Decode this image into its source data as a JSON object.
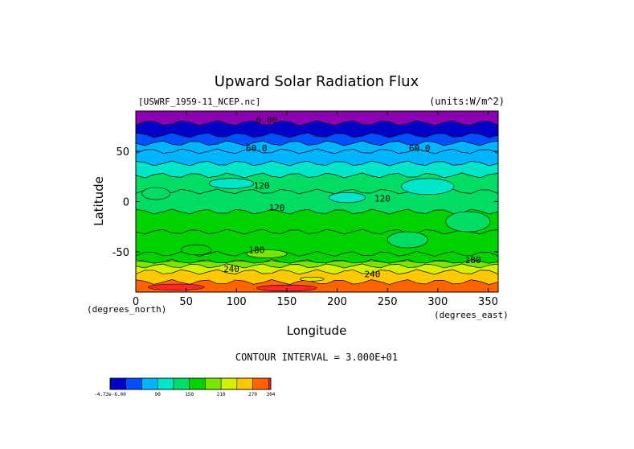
{
  "chart_data": {
    "type": "heatmap",
    "title": "Upward Solar Radiation Flux",
    "subtitle_left": "[USWRF_1959-11_NCEP.nc]",
    "subtitle_right": "(units:W/m^2)",
    "xlabel": "Longitude",
    "ylabel": "Latitude",
    "x_unit": "(degrees_east)",
    "y_unit": "(degrees_north)",
    "xlim": [
      0,
      360
    ],
    "ylim": [
      -90,
      90
    ],
    "x_ticks": [
      0,
      50,
      100,
      150,
      200,
      250,
      300,
      350
    ],
    "y_ticks": [
      50,
      0,
      -50
    ],
    "contour_interval_text": "CONTOUR INTERVAL = 3.000E+01",
    "contour_interval": 30,
    "bands": [
      {
        "lat_min": 78,
        "lat_max": 90,
        "value": 0
      },
      {
        "lat_min": 66,
        "lat_max": 78,
        "value": 15
      },
      {
        "lat_min": 58,
        "lat_max": 66,
        "value": 35
      },
      {
        "lat_min": 50,
        "lat_max": 58,
        "value": 65
      },
      {
        "lat_min": 38,
        "lat_max": 50,
        "value": 85
      },
      {
        "lat_min": 26,
        "lat_max": 38,
        "value": 105
      },
      {
        "lat_min": 10,
        "lat_max": 26,
        "value": 125
      },
      {
        "lat_min": -10,
        "lat_max": 10,
        "value": 135
      },
      {
        "lat_min": -30,
        "lat_max": -10,
        "value": 150
      },
      {
        "lat_min": -52,
        "lat_max": -30,
        "value": 160
      },
      {
        "lat_min": -60,
        "lat_max": -52,
        "value": 175
      },
      {
        "lat_min": -64,
        "lat_max": -60,
        "value": 205
      },
      {
        "lat_min": -70,
        "lat_max": -64,
        "value": 235
      },
      {
        "lat_min": -80,
        "lat_max": -70,
        "value": 255
      },
      {
        "lat_min": -90,
        "lat_max": -80,
        "value": 285
      }
    ],
    "patches": [
      {
        "lon": 20,
        "lat": 8,
        "rx": 14,
        "ry": 6,
        "value": 120
      },
      {
        "lon": 95,
        "lat": 18,
        "rx": 22,
        "ry": 5,
        "value": 105
      },
      {
        "lon": 210,
        "lat": 4,
        "rx": 18,
        "ry": 5,
        "value": 105
      },
      {
        "lon": 290,
        "lat": 15,
        "rx": 26,
        "ry": 8,
        "value": 100
      },
      {
        "lon": 330,
        "lat": -20,
        "rx": 22,
        "ry": 10,
        "value": 120
      },
      {
        "lon": 270,
        "lat": -38,
        "rx": 20,
        "ry": 8,
        "value": 120
      },
      {
        "lon": 60,
        "lat": -48,
        "rx": 15,
        "ry": 5,
        "value": 175
      },
      {
        "lon": 130,
        "lat": -52,
        "rx": 20,
        "ry": 4,
        "value": 180
      },
      {
        "lon": 175,
        "lat": -77,
        "rx": 12,
        "ry": 2,
        "value": 210
      },
      {
        "lon": 40,
        "lat": -85,
        "rx": 28,
        "ry": 3,
        "value": 300
      },
      {
        "lon": 150,
        "lat": -86,
        "rx": 30,
        "ry": 3,
        "value": 300
      }
    ],
    "contour_labels": [
      {
        "text": "0.00",
        "lon": 130,
        "lat": 78
      },
      {
        "text": "60.0",
        "lon": 120,
        "lat": 50
      },
      {
        "text": "60.0",
        "lon": 282,
        "lat": 50
      },
      {
        "text": "120",
        "lon": 125,
        "lat": 13
      },
      {
        "text": "120",
        "lon": 245,
        "lat": 0
      },
      {
        "text": "120",
        "lon": 140,
        "lat": -9
      },
      {
        "text": "180",
        "lon": 120,
        "lat": -51
      },
      {
        "text": "180",
        "lon": 335,
        "lat": -61
      },
      {
        "text": "240",
        "lon": 95,
        "lat": -70
      },
      {
        "text": "240",
        "lon": 235,
        "lat": -75
      }
    ],
    "colorbar": {
      "tick_labels": [
        "-4.73e-6.00",
        "90",
        "150",
        "210",
        "270",
        "304"
      ],
      "tick_values": [
        0,
        90,
        150,
        210,
        270,
        304
      ],
      "levels": [
        0,
        30,
        60,
        90,
        120,
        150,
        180,
        210,
        240,
        270,
        300,
        304
      ],
      "colors": [
        "#0000c8",
        "#0050ff",
        "#00b4ff",
        "#00e6c8",
        "#00dc64",
        "#00d200",
        "#78e600",
        "#d2f000",
        "#ffc800",
        "#ff6400",
        "#ff2828",
        "#ff9696"
      ]
    },
    "colors": {
      "top_band": "#8c00b4"
    }
  }
}
